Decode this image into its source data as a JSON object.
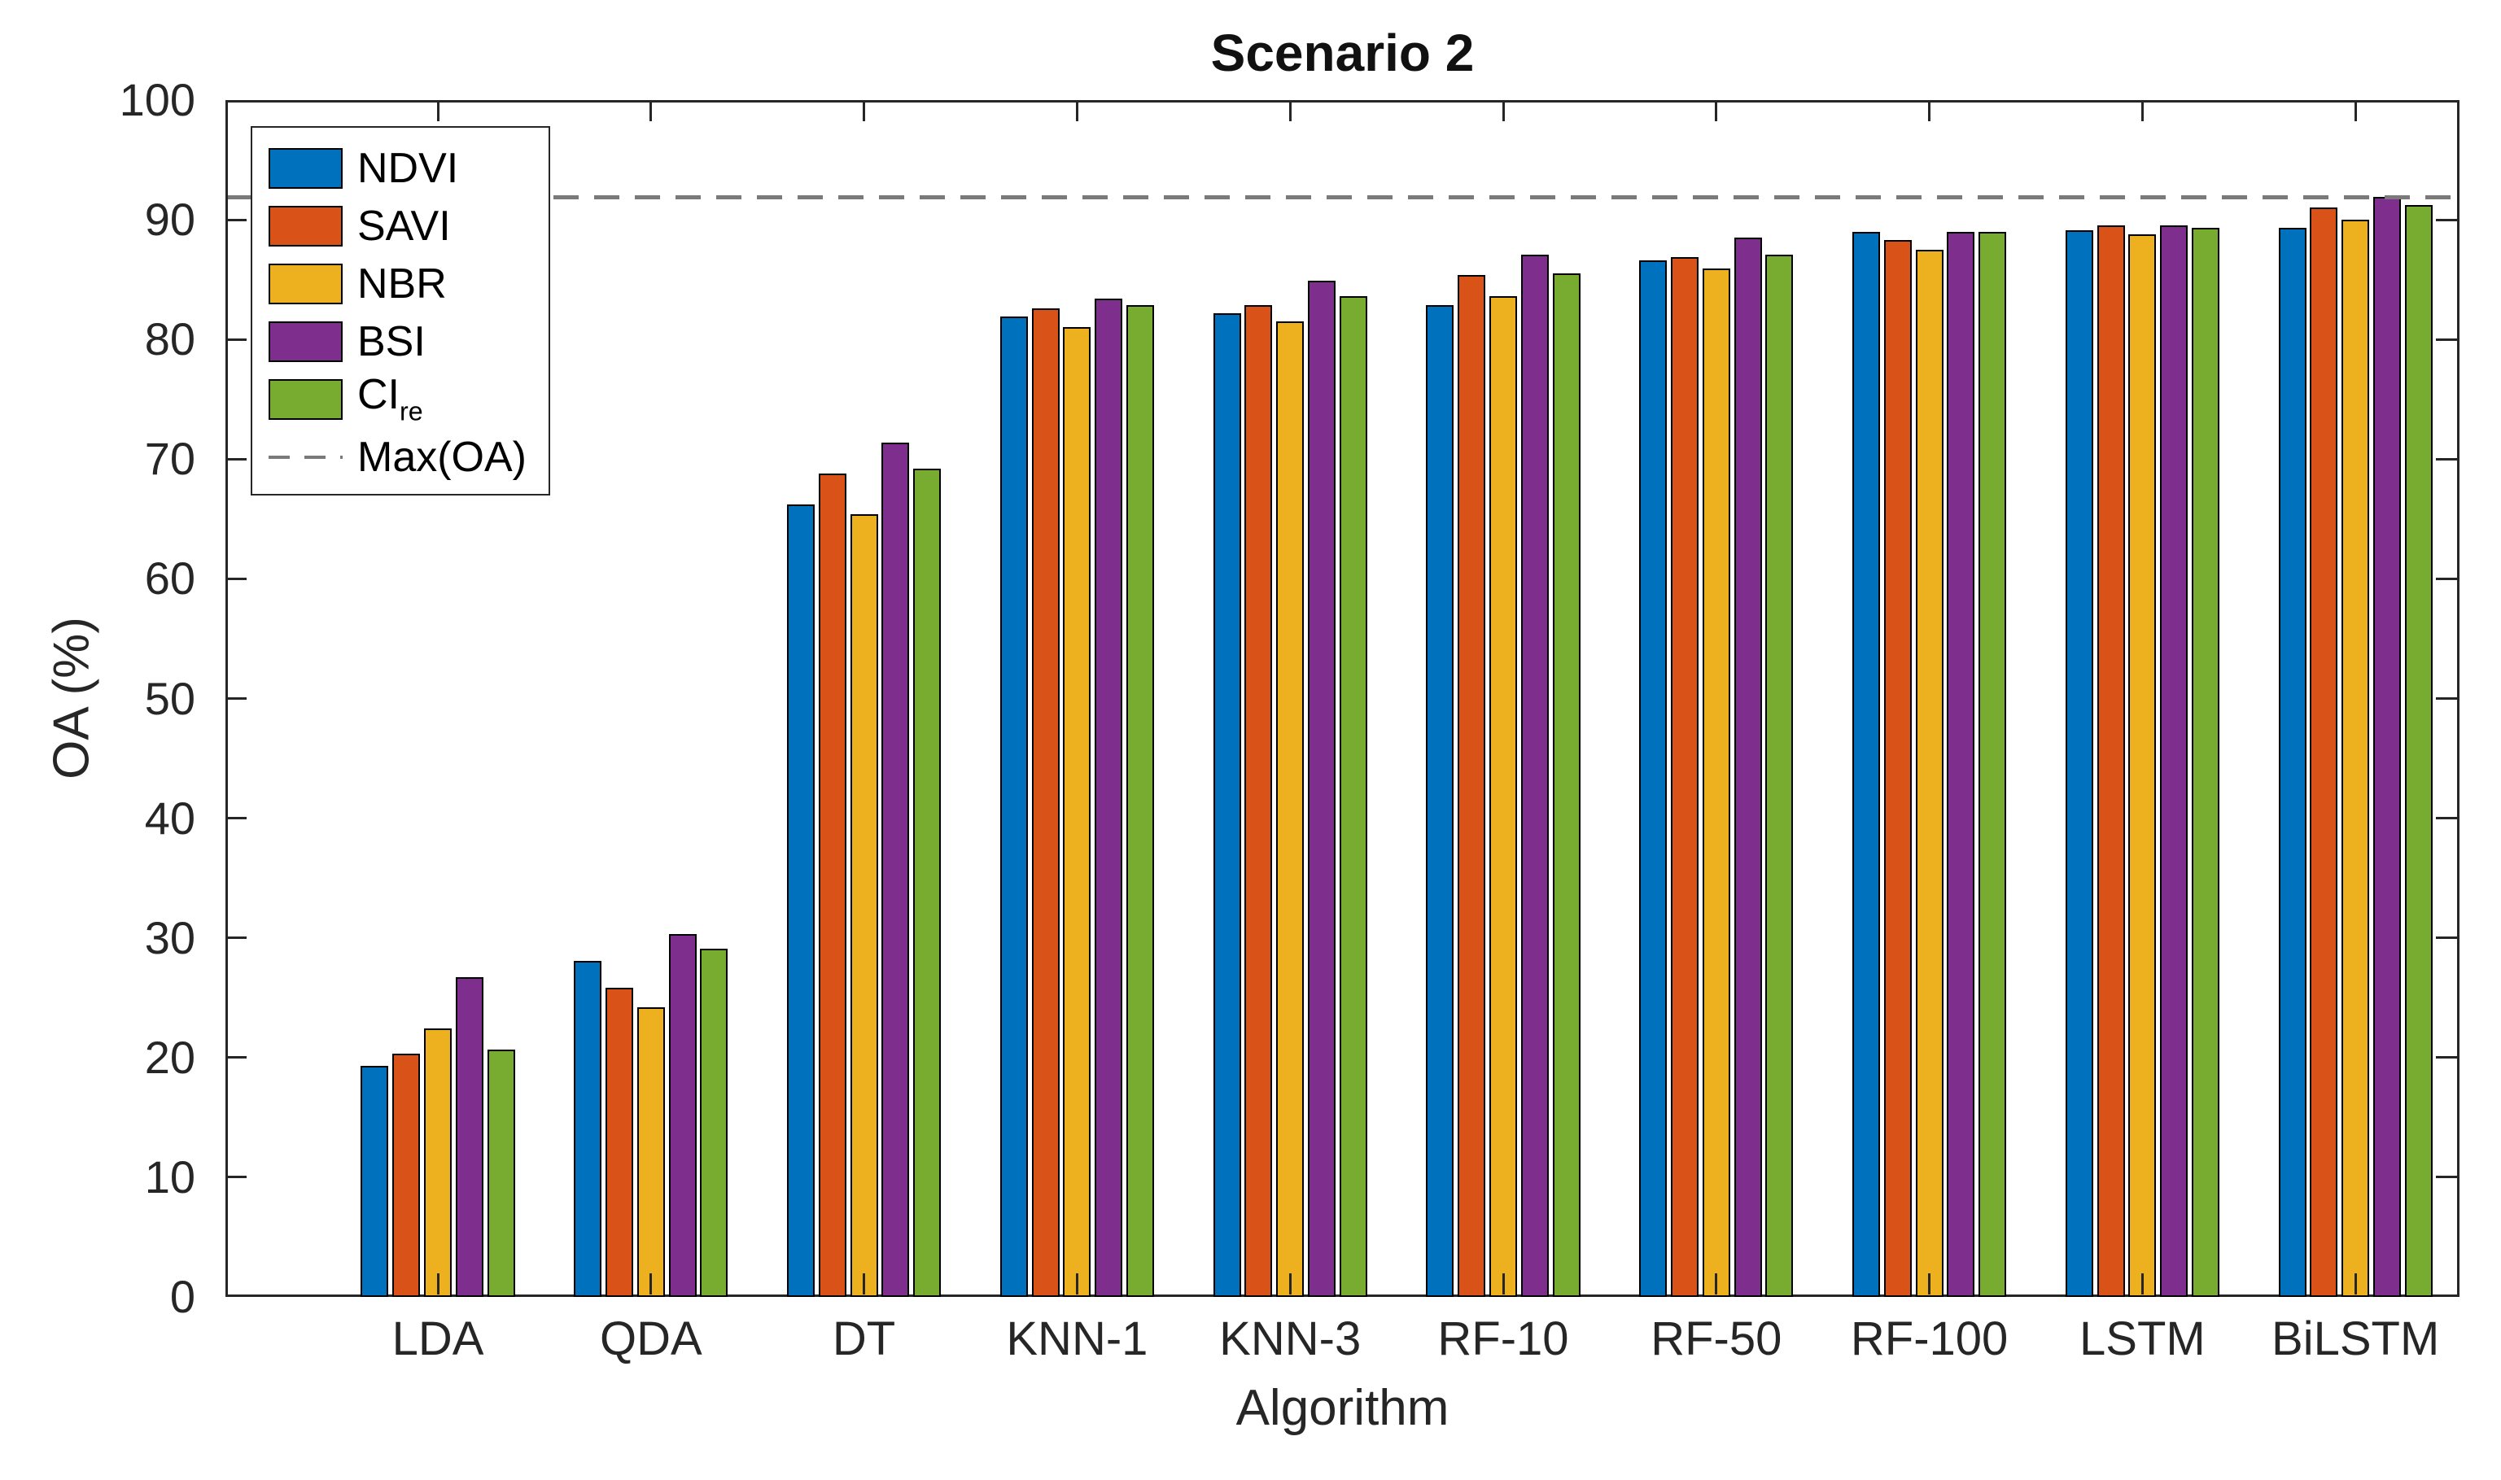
{
  "chart_data": {
    "type": "bar",
    "title": "Scenario 2",
    "xlabel": "Algorithm",
    "ylabel": "OA (%)",
    "ylim": [
      0,
      100
    ],
    "yticks": [
      0,
      10,
      20,
      30,
      40,
      50,
      60,
      70,
      80,
      90,
      100
    ],
    "grid": false,
    "legend_position": "top-left",
    "categories": [
      "LDA",
      "QDA",
      "DT",
      "KNN-1",
      "KNN-3",
      "RF-10",
      "RF-50",
      "RF-100",
      "LSTM",
      "BiLSTM"
    ],
    "series": [
      {
        "name": "NDVI",
        "color": "#0072BD",
        "values": [
          19.3,
          28.1,
          66.2,
          81.9,
          82.2,
          82.9,
          86.6,
          89.0,
          89.1,
          89.3
        ]
      },
      {
        "name": "SAVI",
        "color": "#D95319",
        "values": [
          20.3,
          25.8,
          68.8,
          82.6,
          82.9,
          85.4,
          86.9,
          88.3,
          89.5,
          91.0
        ]
      },
      {
        "name": "NBR",
        "color": "#EDB120",
        "values": [
          22.4,
          24.2,
          65.4,
          81.0,
          81.5,
          83.6,
          85.9,
          87.5,
          88.8,
          90.0
        ]
      },
      {
        "name": "BSI",
        "color": "#7E2F8E",
        "values": [
          26.7,
          30.3,
          71.4,
          83.4,
          84.9,
          87.1,
          88.5,
          89.0,
          89.5,
          91.9
        ]
      },
      {
        "name": "CIre",
        "label_main": "CI",
        "label_sub": "re",
        "color": "#77AC30",
        "values": [
          20.7,
          29.1,
          69.2,
          82.9,
          83.6,
          85.5,
          87.1,
          89.0,
          89.3,
          91.2
        ]
      }
    ],
    "max_line": {
      "label": "Max(OA)",
      "value": 91.9,
      "color": "#7a7a7a"
    }
  },
  "style_colors": {
    "axis": "#262626",
    "bar_edge": "#000000",
    "background": "#ffffff",
    "title_color": "#111111"
  }
}
